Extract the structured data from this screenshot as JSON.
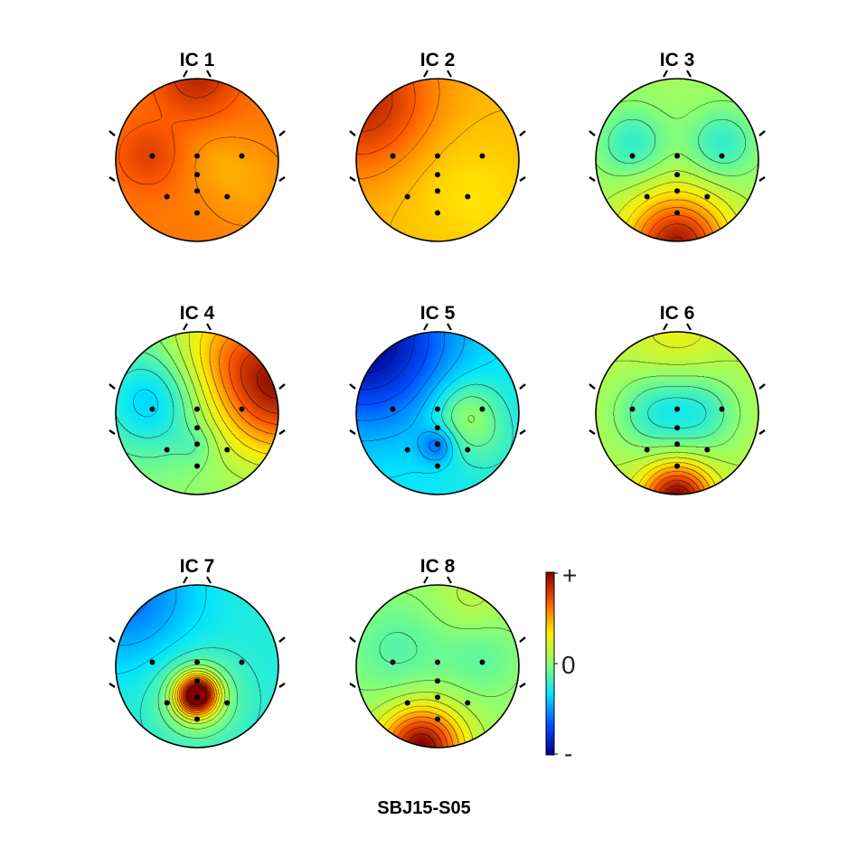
{
  "figure_title": "SBJ15-S05",
  "colormap": [
    "#00008f",
    "#0050ff",
    "#00e5ff",
    "#8dff70",
    "#ffee00",
    "#ff5a00",
    "#800000"
  ],
  "colorbar": {
    "top_label": "+",
    "mid_label": "0",
    "bottom_label": "-"
  },
  "chart_data": {
    "type": "heatmap",
    "title": "SBJ15-S05",
    "grid": false,
    "legend": "colorbar on the right, from - to +",
    "value_range": [
      -1,
      1
    ],
    "electrodes": [
      {
        "x": -0.55,
        "y": 0.05
      },
      {
        "x": 0.0,
        "y": 0.05
      },
      {
        "x": 0.55,
        "y": 0.05
      },
      {
        "x": 0.0,
        "y": -0.18
      },
      {
        "x": -0.37,
        "y": -0.45
      },
      {
        "x": 0.0,
        "y": -0.38
      },
      {
        "x": 0.37,
        "y": -0.45
      },
      {
        "x": 0.0,
        "y": -0.65
      }
    ],
    "components": [
      {
        "label": "IC 1",
        "base": 0.6,
        "terms": [
          {
            "x": -0.6,
            "y": 0.05,
            "a": 0.15,
            "s": 0.28
          },
          {
            "x": 0.0,
            "y": 1.05,
            "a": 0.25,
            "s": 0.35
          },
          {
            "x": 0.22,
            "y": 0.0,
            "a": -0.06,
            "s": 0.25
          },
          {
            "x": 0.6,
            "y": -0.3,
            "a": -0.1,
            "s": 0.4
          }
        ]
      },
      {
        "label": "IC 2",
        "base": 0.45,
        "terms": [
          {
            "x": -0.9,
            "y": 0.7,
            "a": 0.4,
            "s": 0.6
          },
          {
            "x": 0.1,
            "y": -0.2,
            "a": -0.08,
            "s": 0.55
          },
          {
            "x": 0.7,
            "y": -0.6,
            "a": -0.05,
            "s": 0.4
          }
        ]
      },
      {
        "label": "IC 3",
        "base": 0.06,
        "terms": [
          {
            "x": -0.55,
            "y": 0.2,
            "a": -0.28,
            "s": 0.3
          },
          {
            "x": 0.55,
            "y": 0.2,
            "a": -0.28,
            "s": 0.3
          },
          {
            "x": 0.0,
            "y": -1.05,
            "a": 0.85,
            "s": 0.45
          }
        ]
      },
      {
        "label": "IC 4",
        "base": 0.0,
        "terms": [
          {
            "x": -0.55,
            "y": 0.15,
            "a": -0.4,
            "s": 0.45
          },
          {
            "x": 1.05,
            "y": 0.3,
            "a": 0.85,
            "s": 0.6
          },
          {
            "x": 0.35,
            "y": 0.8,
            "a": 0.3,
            "s": 0.5
          },
          {
            "x": 0.0,
            "y": -0.4,
            "a": -0.12,
            "s": 0.18
          }
        ]
      },
      {
        "label": "IC 5",
        "base": -0.3,
        "terms": [
          {
            "x": -0.9,
            "y": 0.9,
            "a": -0.7,
            "s": 0.7
          },
          {
            "x": 0.35,
            "y": 0.0,
            "a": 0.32,
            "s": 0.3
          },
          {
            "x": 0.0,
            "y": -0.4,
            "a": -0.3,
            "s": 0.15
          },
          {
            "x": 0.6,
            "y": -0.4,
            "a": 0.1,
            "s": 0.3
          }
        ]
      },
      {
        "label": "IC 6",
        "base": 0.12,
        "terms": [
          {
            "x": -0.3,
            "y": 0.0,
            "a": -0.3,
            "s": 0.35
          },
          {
            "x": 0.3,
            "y": 0.0,
            "a": -0.3,
            "s": 0.35
          },
          {
            "x": 0.0,
            "y": -1.05,
            "a": 0.9,
            "s": 0.3
          },
          {
            "x": 0.0,
            "y": 1.0,
            "a": 0.15,
            "s": 0.4
          }
        ]
      },
      {
        "label": "IC 7",
        "base": -0.25,
        "terms": [
          {
            "x": -0.9,
            "y": 0.9,
            "a": -0.35,
            "s": 0.6
          },
          {
            "x": 0.0,
            "y": -0.35,
            "a": 1.2,
            "s": 0.17
          },
          {
            "x": 0.0,
            "y": -0.4,
            "a": 0.35,
            "s": 0.35
          }
        ]
      },
      {
        "label": "IC 8",
        "base": 0.05,
        "terms": [
          {
            "x": -0.2,
            "y": -1.0,
            "a": 0.95,
            "s": 0.35
          },
          {
            "x": -0.5,
            "y": 0.2,
            "a": -0.18,
            "s": 0.45
          },
          {
            "x": 0.55,
            "y": 0.1,
            "a": -0.15,
            "s": 0.35
          },
          {
            "x": 0.4,
            "y": 0.8,
            "a": 0.1,
            "s": 0.3
          }
        ]
      }
    ]
  }
}
